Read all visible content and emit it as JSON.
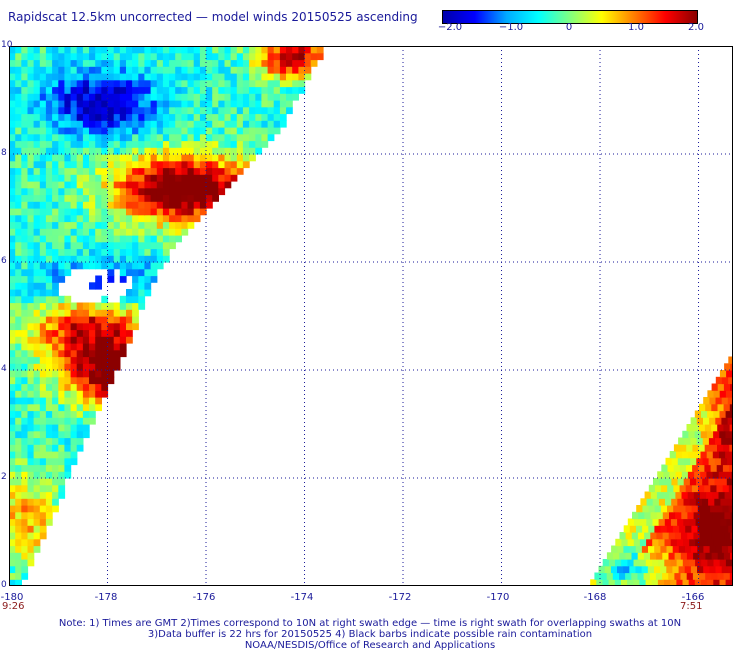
{
  "title": "Rapidscat 12.5km uncorrected — model winds 20150525 ascending",
  "colorbar": {
    "ticks": [
      "−2.0",
      "−1.0",
      "0",
      "1.0",
      "2.0"
    ],
    "colors": [
      "#0000aa",
      "#0000ff",
      "#00aaff",
      "#00ffff",
      "#80ff80",
      "#ffff00",
      "#ff8000",
      "#ff0000",
      "#8b0000"
    ]
  },
  "map": {
    "lon_ticks": [
      "-180",
      "-178",
      "-176",
      "-174",
      "-172",
      "-170",
      "-168",
      "-166"
    ],
    "lat_ticks": [
      "10",
      "8",
      "6",
      "4",
      "2",
      "0"
    ],
    "lon_range": [
      -180,
      -165.3
    ],
    "lat_range": [
      0,
      10
    ],
    "grid": true,
    "swaths": [
      {
        "time": "9:26",
        "edge_time_lon": -180
      },
      {
        "time": "7:51",
        "edge_time_lon": -166
      }
    ]
  },
  "notes": [
    "Note: 1) Times are GMT 2)Times correspond to 10N at right swath edge — time is right swath for overlapping swaths at 10N",
    "3)Data buffer is 22 hrs for 20150525 4) Black barbs indicate possible rain contamination",
    "NOAA/NESDIS/Office of Research and Applications"
  ]
}
